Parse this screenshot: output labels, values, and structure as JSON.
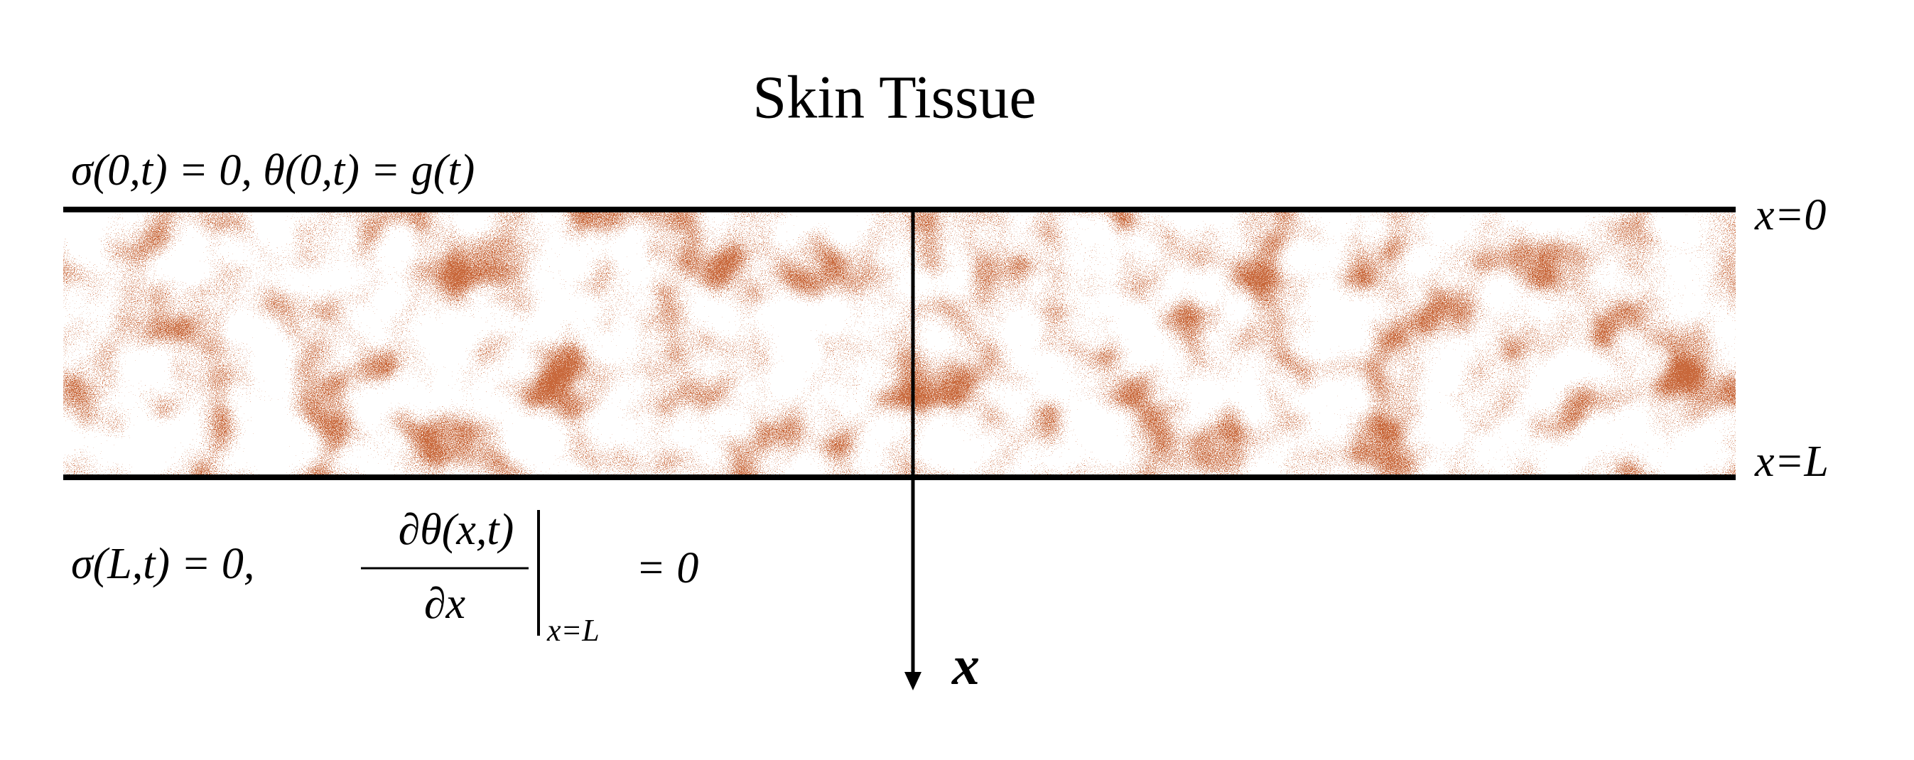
{
  "title": "Skin Tissue",
  "boundary_top": {
    "text": "σ(0,t) = 0,   θ(0,t) = g(t)"
  },
  "boundary_bottom": {
    "lhs": "σ(L,t) = 0,",
    "numerator": "∂θ(x,t)",
    "denominator": "∂x",
    "evaluated_at": "x=L",
    "rhs": "= 0"
  },
  "labels": {
    "top": "x=0",
    "bottom": "x=L",
    "axis": "x"
  }
}
